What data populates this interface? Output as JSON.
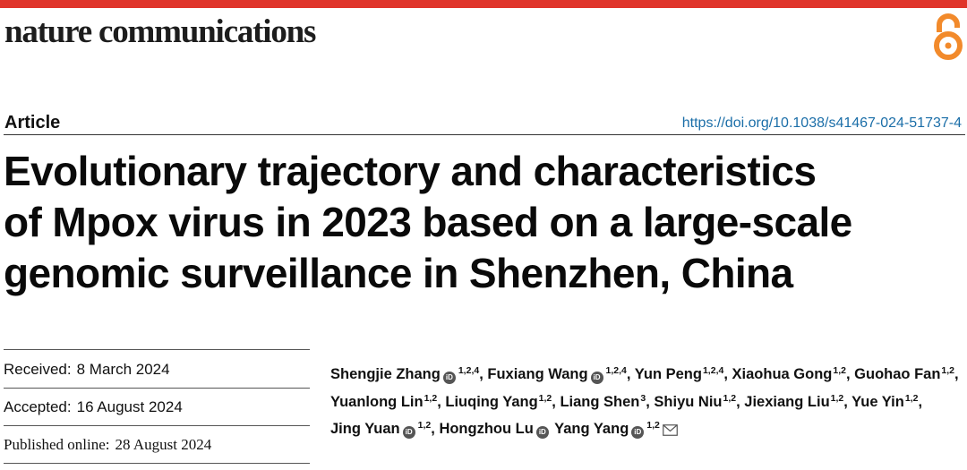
{
  "header": {
    "journal_name": "nature communications",
    "open_access_icon": "open-access-icon",
    "accent_color": "#e0352b"
  },
  "article": {
    "type": "Article",
    "doi": "https://doi.org/10.1038/s41467-024-51737-4",
    "title_lines": [
      "Evolutionary trajectory and characteristics",
      "of Mpox virus in 2023 based on a large-scale",
      "genomic surveillance in Shenzhen, China"
    ]
  },
  "dates": {
    "received_label": "Received:",
    "received_value": "8 March 2024",
    "accepted_label": "Accepted:",
    "accepted_value": "16 August 2024",
    "published_label": "Published online:",
    "published_value": "28 August 2024"
  },
  "authors": [
    {
      "name": "Shengjie Zhang",
      "orcid": true,
      "aff": "1,2,4",
      "sep": ","
    },
    {
      "name": "Fuxiang Wang",
      "orcid": true,
      "aff": "1,2,4",
      "sep": ","
    },
    {
      "name": "Yun Peng",
      "orcid": false,
      "aff": "1,2,4",
      "sep": ","
    },
    {
      "name": "Xiaohua Gong",
      "orcid": false,
      "aff": "1,2",
      "sep": ","
    },
    {
      "name": "Guohao Fan",
      "orcid": false,
      "aff": "1,2",
      "sep": ","
    },
    {
      "name": "Yuanlong Lin",
      "orcid": false,
      "aff": "1,2",
      "sep": ","
    },
    {
      "name": "Liuqing Yang",
      "orcid": false,
      "aff": "1,2",
      "sep": ","
    },
    {
      "name": "Liang Shen",
      "orcid": false,
      "aff": "3",
      "sep": ","
    },
    {
      "name": "Shiyu Niu",
      "orcid": false,
      "aff": "1,2",
      "sep": ","
    },
    {
      "name": "Jiexiang Liu",
      "orcid": false,
      "aff": "1,2",
      "sep": ","
    },
    {
      "name": "Yue Yin",
      "orcid": false,
      "aff": "1,2",
      "sep": ","
    },
    {
      "name": "Jing Yuan",
      "orcid": true,
      "aff": "1,2",
      "sep": ","
    },
    {
      "name": "Hongzhou Lu",
      "orcid": true,
      "aff": "",
      "sep": ""
    },
    {
      "name": "Yang Yang",
      "orcid": true,
      "aff": "1,2",
      "sep": "",
      "email": true
    }
  ],
  "orcid_text": "iD",
  "icons": [
    "open-access-icon",
    "orcid-icon",
    "email-icon"
  ]
}
